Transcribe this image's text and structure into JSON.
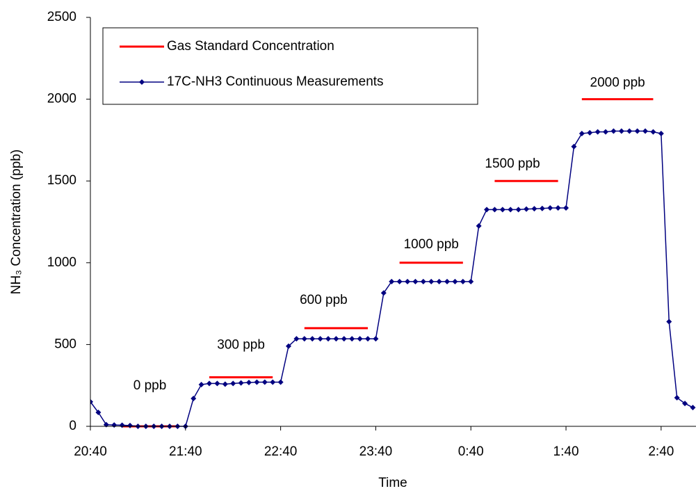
{
  "chart_data": {
    "type": "line",
    "xlabel": "Time",
    "ylabel": "NH₃ Concentration (ppb)",
    "xlim": [
      "20:40",
      "3:02"
    ],
    "xticks": [
      "20:40",
      "21:40",
      "22:40",
      "23:40",
      "0:40",
      "1:40",
      "2:40"
    ],
    "ylim": [
      0,
      2500
    ],
    "yticks": [
      0,
      500,
      1000,
      1500,
      2000,
      2500
    ],
    "grid": false,
    "legend_position": "upper left",
    "standards": {
      "name": "Gas Standard Concentration",
      "color": "#ff0000",
      "segments": [
        {
          "x": [
            "21:00",
            "21:35"
          ],
          "value": 0,
          "label": "0 ppb"
        },
        {
          "x": [
            "21:55",
            "22:35"
          ],
          "value": 300,
          "label": "300 ppb"
        },
        {
          "x": [
            "22:55",
            "23:35"
          ],
          "value": 600,
          "label": "600 ppb"
        },
        {
          "x": [
            "23:55",
            "0:35"
          ],
          "value": 1000,
          "label": "1000 ppb"
        },
        {
          "x": [
            "0:55",
            "1:35"
          ],
          "value": 1500,
          "label": "1500 ppb"
        },
        {
          "x": [
            "1:50",
            "2:35"
          ],
          "value": 2000,
          "label": "2000 ppb"
        }
      ]
    },
    "x": [
      "20:40",
      "20:45",
      "20:50",
      "20:55",
      "21:00",
      "21:05",
      "21:10",
      "21:15",
      "21:20",
      "21:25",
      "21:30",
      "21:35",
      "21:40",
      "21:45",
      "21:50",
      "21:55",
      "22:00",
      "22:05",
      "22:10",
      "22:15",
      "22:20",
      "22:25",
      "22:30",
      "22:35",
      "22:40",
      "22:45",
      "22:50",
      "22:55",
      "23:00",
      "23:05",
      "23:10",
      "23:15",
      "23:20",
      "23:25",
      "23:30",
      "23:35",
      "23:40",
      "23:45",
      "23:50",
      "23:55",
      "0:00",
      "0:05",
      "0:10",
      "0:15",
      "0:20",
      "0:25",
      "0:30",
      "0:35",
      "0:40",
      "0:45",
      "0:50",
      "0:55",
      "1:00",
      "1:05",
      "1:10",
      "1:15",
      "1:20",
      "1:25",
      "1:30",
      "1:35",
      "1:40",
      "1:45",
      "1:50",
      "1:55",
      "2:00",
      "2:05",
      "2:10",
      "2:15",
      "2:20",
      "2:25",
      "2:30",
      "2:35",
      "2:40",
      "2:45",
      "2:50",
      "2:55",
      "3:00"
    ],
    "series": [
      {
        "name": "17C-NH3 Continuous Measurements",
        "color": "#000080",
        "values": [
          150,
          85,
          10,
          8,
          7,
          5,
          0,
          0,
          0,
          0,
          0,
          0,
          0,
          170,
          255,
          262,
          262,
          258,
          262,
          265,
          268,
          270,
          270,
          270,
          270,
          490,
          535,
          535,
          535,
          535,
          535,
          535,
          535,
          535,
          535,
          535,
          535,
          815,
          885,
          885,
          885,
          885,
          885,
          885,
          885,
          885,
          885,
          885,
          885,
          1225,
          1325,
          1325,
          1325,
          1325,
          1325,
          1328,
          1330,
          1332,
          1335,
          1335,
          1335,
          1710,
          1790,
          1795,
          1800,
          1800,
          1805,
          1805,
          1805,
          1805,
          1805,
          1800,
          1790,
          640,
          175,
          140,
          115
        ]
      }
    ]
  }
}
